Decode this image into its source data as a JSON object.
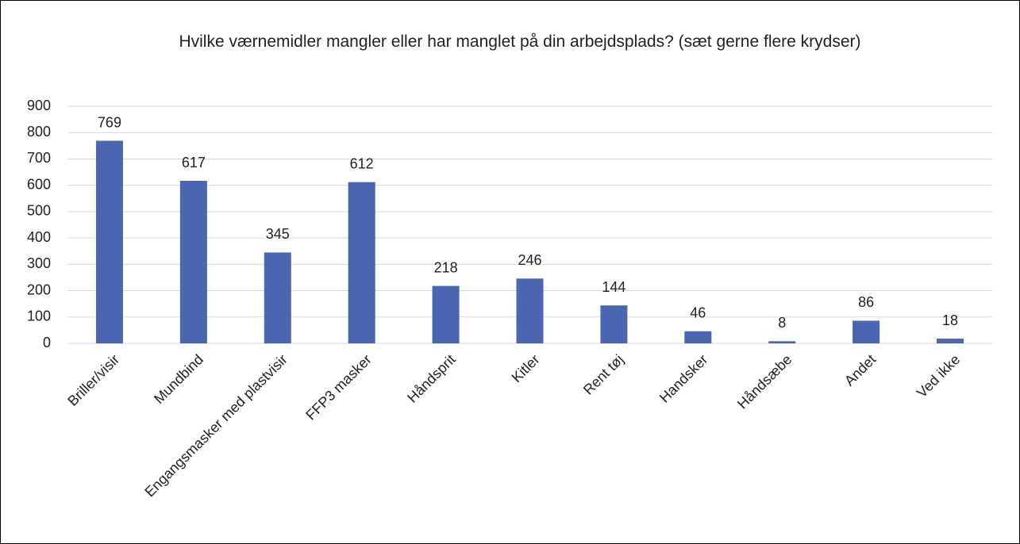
{
  "chart_data": {
    "type": "bar",
    "title": "Hvilke værnemidler mangler eller har manglet på din arbejdsplads? (sæt gerne flere krydser)",
    "categories": [
      "Briller/visir",
      "Mundbind",
      "Engangsmasker med plastvisir",
      "FFP3 masker",
      "Håndsprit",
      "Kitler",
      "Rent tøj",
      "Handsker",
      "Håndsæbe",
      "Andet",
      "Ved ikke"
    ],
    "values": [
      769,
      617,
      345,
      612,
      218,
      246,
      144,
      46,
      8,
      86,
      18
    ],
    "color": "#4a66b0",
    "ylim": [
      0,
      900
    ],
    "yticks": [
      0,
      100,
      200,
      300,
      400,
      500,
      600,
      700,
      800,
      900
    ],
    "grid": true
  }
}
